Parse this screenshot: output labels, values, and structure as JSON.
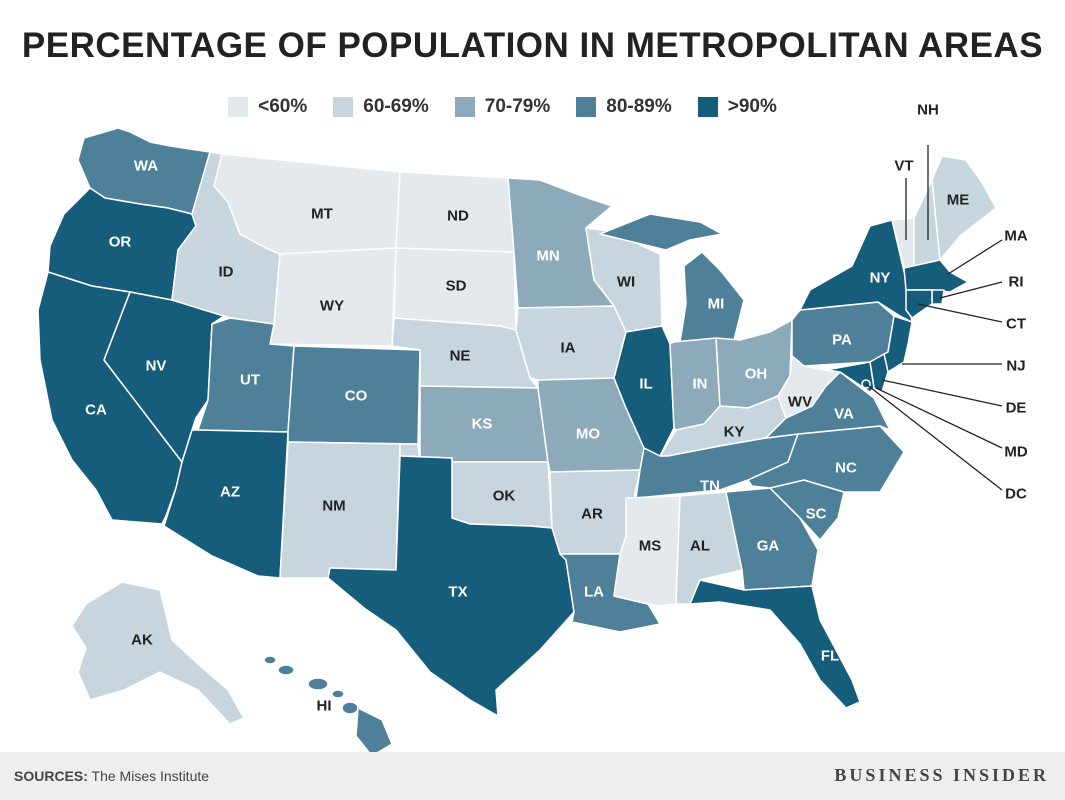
{
  "title": "PERCENTAGE OF POPULATION IN METROPOLITAN AREAS",
  "legend": [
    {
      "label": "<60%",
      "color": "#e3e9ed"
    },
    {
      "label": "60-69%",
      "color": "#c6d5de"
    },
    {
      "label": "70-79%",
      "color": "#8daabb"
    },
    {
      "label": "80-89%",
      "color": "#4e8199"
    },
    {
      "label": ">90%",
      "color": "#165d7c"
    }
  ],
  "states": {
    "WA": {
      "label": "WA",
      "bin": 3
    },
    "OR": {
      "label": "OR",
      "bin": 4
    },
    "CA": {
      "label": "CA",
      "bin": 4
    },
    "NV": {
      "label": "NV",
      "bin": 4
    },
    "ID": {
      "label": "ID",
      "bin": 1
    },
    "MT": {
      "label": "MT",
      "bin": 0
    },
    "WY": {
      "label": "WY",
      "bin": 0
    },
    "UT": {
      "label": "UT",
      "bin": 3
    },
    "AZ": {
      "label": "AZ",
      "bin": 4
    },
    "CO": {
      "label": "CO",
      "bin": 3
    },
    "NM": {
      "label": "NM",
      "bin": 1
    },
    "ND": {
      "label": "ND",
      "bin": 0
    },
    "SD": {
      "label": "SD",
      "bin": 0
    },
    "NE": {
      "label": "NE",
      "bin": 1
    },
    "KS": {
      "label": "KS",
      "bin": 2
    },
    "OK": {
      "label": "OK",
      "bin": 1
    },
    "TX": {
      "label": "TX",
      "bin": 4
    },
    "MN": {
      "label": "MN",
      "bin": 2
    },
    "IA": {
      "label": "IA",
      "bin": 1
    },
    "MO": {
      "label": "MO",
      "bin": 2
    },
    "AR": {
      "label": "AR",
      "bin": 1
    },
    "LA": {
      "label": "LA",
      "bin": 3
    },
    "WI": {
      "label": "WI",
      "bin": 1
    },
    "IL": {
      "label": "IL",
      "bin": 4
    },
    "MI": {
      "label": "MI",
      "bin": 3
    },
    "IN": {
      "label": "IN",
      "bin": 2
    },
    "OH": {
      "label": "OH",
      "bin": 2
    },
    "KY": {
      "label": "KY",
      "bin": 1
    },
    "TN": {
      "label": "TN",
      "bin": 3
    },
    "MS": {
      "label": "MS",
      "bin": 0
    },
    "AL": {
      "label": "AL",
      "bin": 1
    },
    "GA": {
      "label": "GA",
      "bin": 3
    },
    "FL": {
      "label": "FL",
      "bin": 4
    },
    "SC": {
      "label": "SC",
      "bin": 3
    },
    "NC": {
      "label": "NC",
      "bin": 3
    },
    "VA": {
      "label": "VA",
      "bin": 3
    },
    "WV": {
      "label": "WV",
      "bin": 0
    },
    "PA": {
      "label": "PA",
      "bin": 3
    },
    "NY": {
      "label": "NY",
      "bin": 4
    },
    "ME": {
      "label": "ME",
      "bin": 1
    },
    "VT": {
      "label": "VT",
      "bin": 0
    },
    "NH": {
      "label": "NH",
      "bin": 1
    },
    "MA": {
      "label": "MA",
      "bin": 4
    },
    "RI": {
      "label": "RI",
      "bin": 4
    },
    "CT": {
      "label": "CT",
      "bin": 4
    },
    "NJ": {
      "label": "NJ",
      "bin": 4
    },
    "DE": {
      "label": "DE",
      "bin": 4
    },
    "MD": {
      "label": "MD",
      "bin": 4
    },
    "DC": {
      "label": "DC",
      "bin": 4
    },
    "AK": {
      "label": "AK",
      "bin": 1
    },
    "HI": {
      "label": "HI",
      "bin": 3
    }
  },
  "footer": {
    "sources_label": "SOURCES:",
    "sources_text": "The Mises Institute",
    "brand": "BUSINESS INSIDER"
  }
}
